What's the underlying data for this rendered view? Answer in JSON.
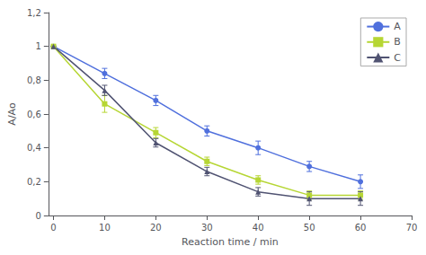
{
  "chart_data": {
    "type": "line",
    "x": [
      0,
      10,
      20,
      30,
      40,
      50,
      60
    ],
    "series": [
      {
        "name": "A",
        "marker": "circle",
        "values": [
          1.0,
          0.84,
          0.68,
          0.5,
          0.4,
          0.29,
          0.2
        ],
        "errors": [
          0.0,
          0.03,
          0.03,
          0.03,
          0.04,
          0.03,
          0.04
        ]
      },
      {
        "name": "B",
        "marker": "square",
        "values": [
          1.0,
          0.66,
          0.49,
          0.32,
          0.21,
          0.12,
          0.12
        ],
        "errors": [
          0.0,
          0.05,
          0.03,
          0.025,
          0.025,
          0.025,
          0.025
        ]
      },
      {
        "name": "C",
        "marker": "triangle",
        "values": [
          1.0,
          0.74,
          0.43,
          0.26,
          0.14,
          0.1,
          0.1
        ],
        "errors": [
          0.0,
          0.03,
          0.025,
          0.025,
          0.025,
          0.04,
          0.04
        ]
      }
    ],
    "xlabel": "Reaction time / min",
    "ylabel": "A/Ao",
    "xlim": [
      -1,
      70
    ],
    "xticks": [
      0,
      10,
      20,
      30,
      40,
      50,
      60,
      70
    ],
    "ylim": [
      0,
      1.2
    ],
    "yticks": [
      0,
      {
        "value": 0.2,
        "label": "0,2"
      },
      {
        "value": 0.4,
        "label": "0,4"
      },
      {
        "value": 0.6,
        "label": "0,6"
      },
      {
        "value": 0.8,
        "label": "0,8"
      },
      1,
      {
        "value": 1.2,
        "label": "1,2"
      }
    ],
    "grid": false,
    "legend": "upper right"
  }
}
